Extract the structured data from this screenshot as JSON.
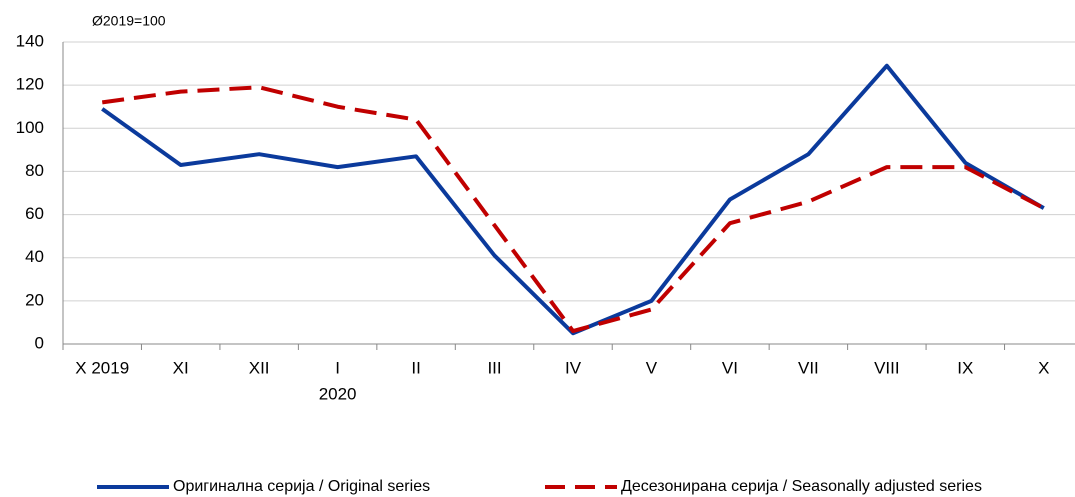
{
  "chart_data": {
    "type": "line",
    "y_label": "Ø2019=100",
    "categories": [
      "X 2019",
      "XI",
      "XII",
      "I",
      "II",
      "III",
      "IV",
      "V",
      "VI",
      "VII",
      "VIII",
      "IX",
      "X"
    ],
    "year_label": "2020",
    "series": [
      {
        "name": "Оригинална серија / Original series",
        "color": "#0b3a9c",
        "dash": false,
        "values": [
          109,
          83,
          88,
          82,
          87,
          41,
          5,
          20,
          67,
          88,
          129,
          84,
          63
        ]
      },
      {
        "name": "Десезонирана серија / Seasonally adjusted series",
        "color": "#c00000",
        "dash": true,
        "values": [
          112,
          117,
          119,
          110,
          104,
          55,
          6,
          16,
          56,
          66,
          82,
          82,
          63
        ]
      }
    ],
    "ylim": [
      0,
      140
    ],
    "yticks": [
      0,
      20,
      40,
      60,
      80,
      100,
      120,
      140
    ],
    "grid": true
  }
}
